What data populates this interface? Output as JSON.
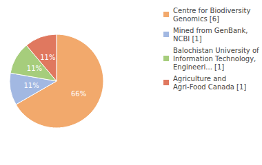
{
  "chart_data": {
    "type": "pie",
    "categories": [
      "Centre for Biodiversity Genomics [6]",
      "Mined from GenBank, NCBI [1]",
      "Balochistan University of Information Technology, Engineeri... [1]",
      "Agriculture and Agri-Food Canada [1]"
    ],
    "values": [
      66,
      11,
      11,
      11
    ],
    "value_labels": [
      "66%",
      "11%",
      "11%",
      "11%"
    ],
    "colors": [
      "#f2a96c",
      "#a2b8e2",
      "#a6cd7c",
      "#e0785f"
    ],
    "data_labels": true,
    "legend": "top-right"
  }
}
